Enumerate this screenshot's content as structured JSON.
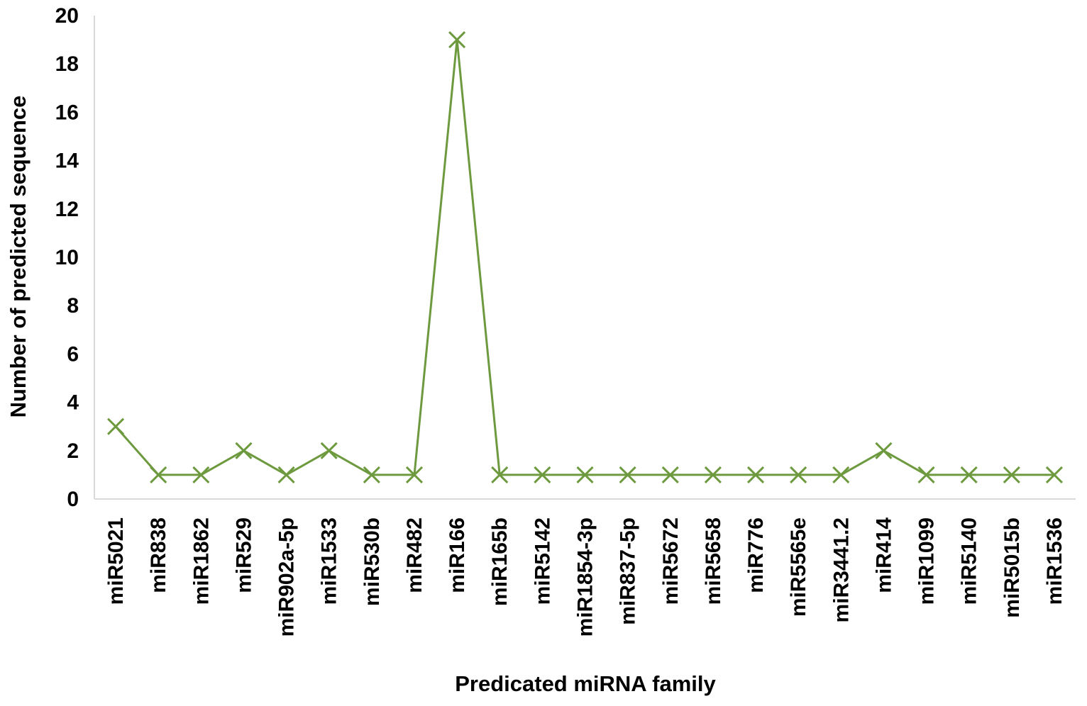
{
  "chart_data": {
    "type": "line",
    "title": "",
    "xlabel": "Predicated miRNA family",
    "ylabel": "Number of predicted sequence",
    "ylim": [
      0,
      20
    ],
    "yticks": [
      "0",
      "2",
      "4",
      "6",
      "8",
      "10",
      "12",
      "14",
      "16",
      "18",
      "20"
    ],
    "grid": false,
    "legend": "none",
    "marker": "x",
    "line_color": "#6e9a3f",
    "categories": [
      "miR5021",
      "miR838",
      "miR1862",
      "miR529",
      "miR902a-5p",
      "miR1533",
      "miR530b",
      "miR482",
      "miR166",
      "miR165b",
      "miR5142",
      "miR1854-3p",
      "miR837-5p",
      "miR5672",
      "miR5658",
      "miR776",
      "miR5565e",
      "miR3441.2",
      "miR414",
      "miR1099",
      "miR5140",
      "miR5015b",
      "miR1536"
    ],
    "values": [
      3,
      1,
      1,
      2,
      1,
      2,
      1,
      1,
      19,
      1,
      1,
      1,
      1,
      1,
      1,
      1,
      1,
      1,
      2,
      1,
      1,
      1,
      1
    ]
  }
}
